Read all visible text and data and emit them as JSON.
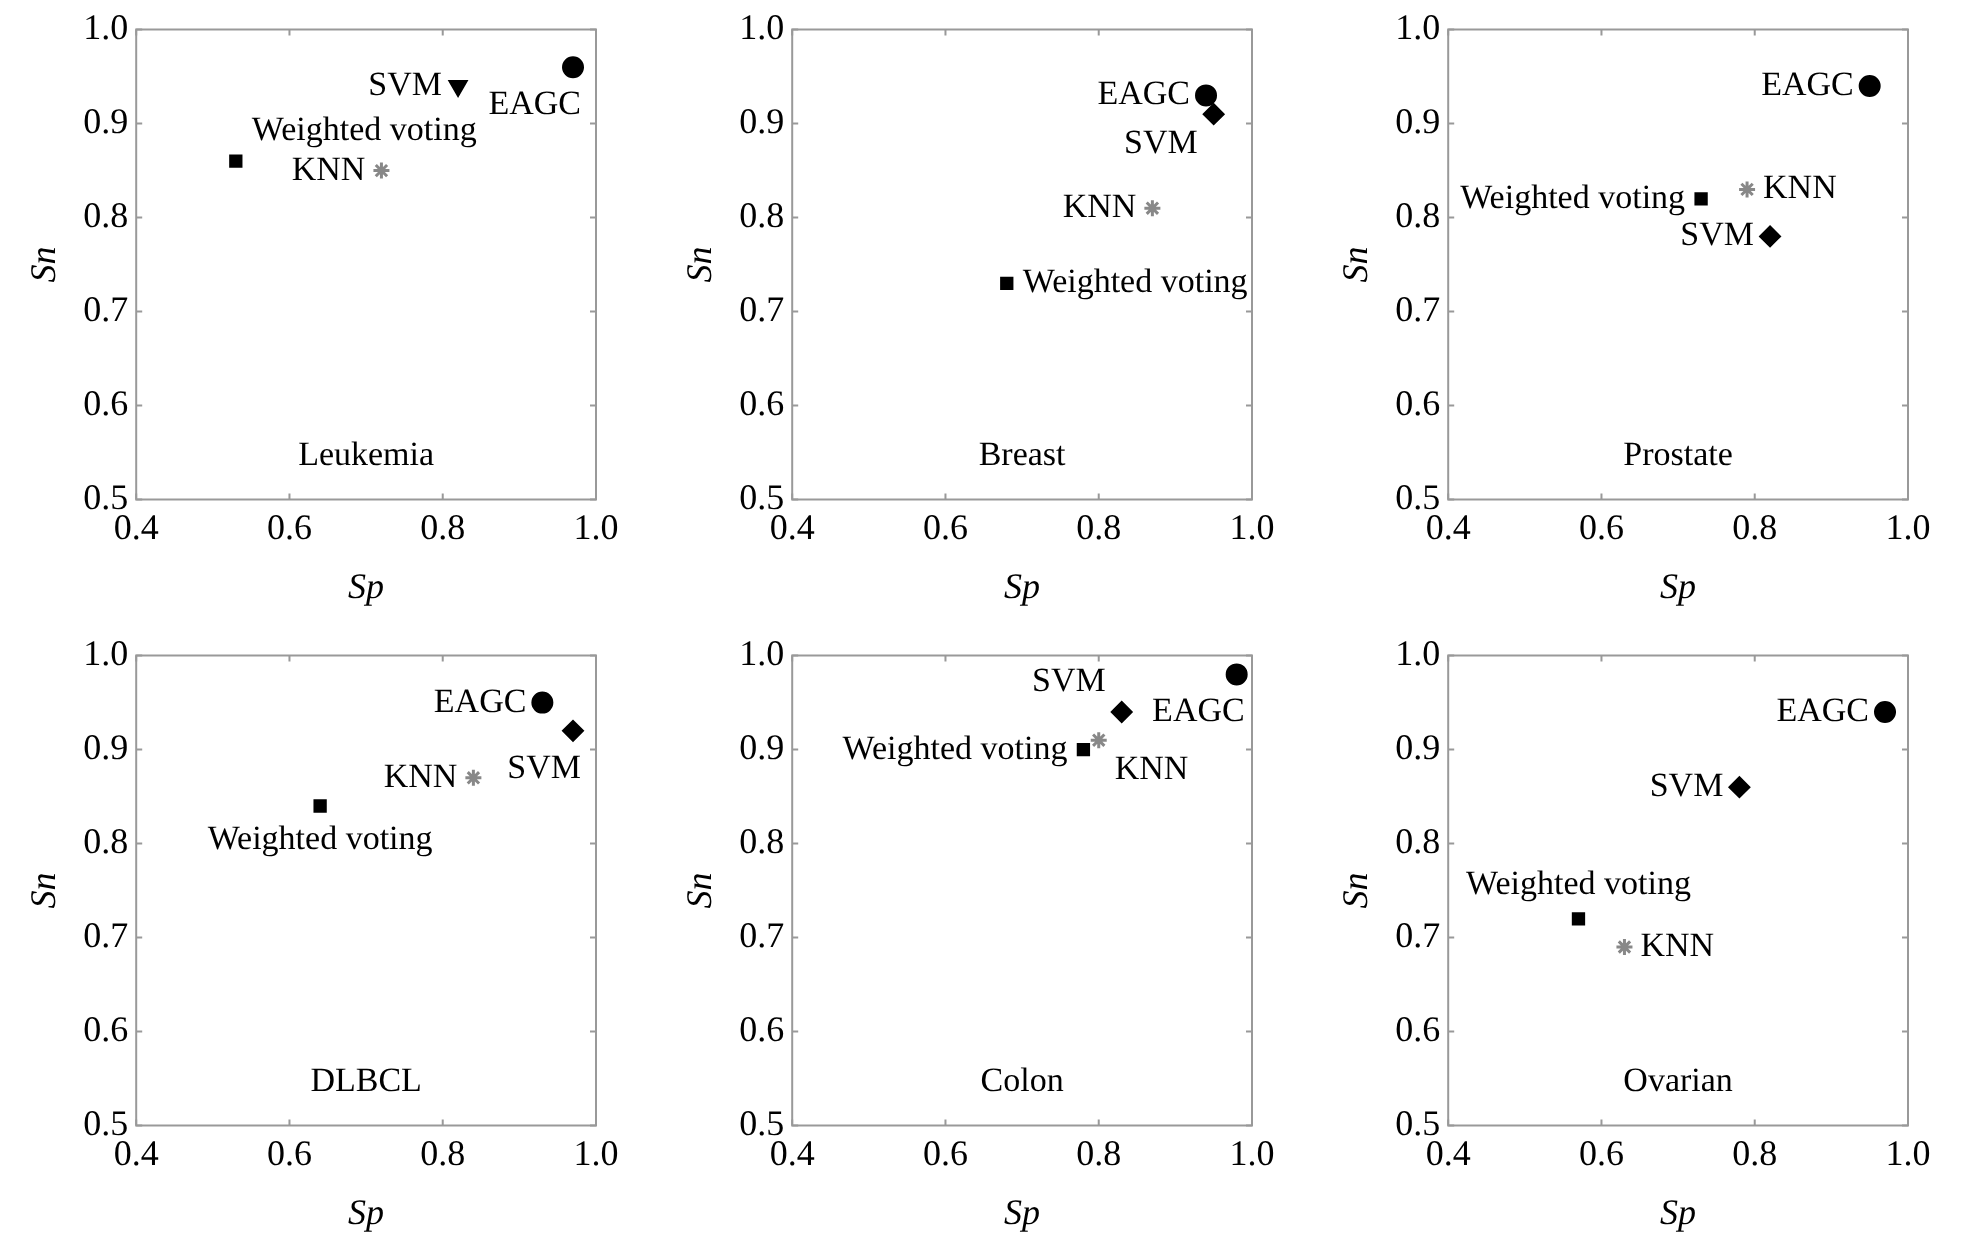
{
  "chart_data": [
    {
      "type": "scatter",
      "title": "Leukemia",
      "xlabel": "Sp",
      "ylabel": "Sn",
      "xlim": [
        0.4,
        1.0
      ],
      "ylim": [
        0.5,
        1.0
      ],
      "xticks": [
        {
          "value": 0.4,
          "label": "0.4"
        },
        {
          "value": 0.6,
          "label": "0.6"
        },
        {
          "value": 0.8,
          "label": "0.8"
        },
        {
          "value": 1.0,
          "label": "1.0"
        }
      ],
      "yticks": [
        {
          "value": 0.5,
          "label": "0.5"
        },
        {
          "value": 0.6,
          "label": "0.6"
        },
        {
          "value": 0.7,
          "label": "0.7"
        },
        {
          "value": 0.8,
          "label": "0.8"
        },
        {
          "value": 0.9,
          "label": "0.9"
        },
        {
          "value": 1.0,
          "label": "1.0"
        }
      ],
      "grid": false,
      "legend": false,
      "series": [
        {
          "name": "EAGC",
          "color": "#000000",
          "marker": "circle",
          "x": [
            0.97
          ],
          "values": [
            0.96
          ]
        },
        {
          "name": "SVM",
          "color": "#000000",
          "marker": "triangle",
          "x": [
            0.82
          ],
          "values": [
            0.94
          ]
        },
        {
          "name": "KNN",
          "color": "#888888",
          "marker": "cross",
          "x": [
            0.72
          ],
          "values": [
            0.85
          ]
        },
        {
          "name": "Weighted voting",
          "color": "#000000",
          "marker": "square",
          "x": [
            0.53
          ],
          "values": [
            0.86
          ]
        }
      ]
    },
    {
      "type": "scatter",
      "title": "Breast",
      "xlabel": "Sp",
      "ylabel": "Sn",
      "xlim": [
        0.4,
        1.0
      ],
      "ylim": [
        0.5,
        1.0
      ],
      "xticks": [
        {
          "value": 0.4,
          "label": "0.4"
        },
        {
          "value": 0.6,
          "label": "0.6"
        },
        {
          "value": 0.8,
          "label": "0.8"
        },
        {
          "value": 1.0,
          "label": "1.0"
        }
      ],
      "yticks": [
        {
          "value": 0.5,
          "label": "0.5"
        },
        {
          "value": 0.6,
          "label": "0.6"
        },
        {
          "value": 0.7,
          "label": "0.7"
        },
        {
          "value": 0.8,
          "label": "0.8"
        },
        {
          "value": 0.9,
          "label": "0.9"
        },
        {
          "value": 1.0,
          "label": "1.0"
        }
      ],
      "grid": false,
      "legend": false,
      "series": [
        {
          "name": "EAGC",
          "color": "#000000",
          "marker": "circle",
          "x": [
            0.94
          ],
          "values": [
            0.93
          ]
        },
        {
          "name": "SVM",
          "color": "#000000",
          "marker": "diamond",
          "x": [
            0.95
          ],
          "values": [
            0.91
          ]
        },
        {
          "name": "KNN",
          "color": "#888888",
          "marker": "cross",
          "x": [
            0.87
          ],
          "values": [
            0.81
          ]
        },
        {
          "name": "Weighted voting",
          "color": "#000000",
          "marker": "square",
          "x": [
            0.68
          ],
          "values": [
            0.73
          ]
        }
      ]
    },
    {
      "type": "scatter",
      "title": "Prostate",
      "xlabel": "Sp",
      "ylabel": "Sn",
      "xlim": [
        0.4,
        1.0
      ],
      "ylim": [
        0.5,
        1.0
      ],
      "xticks": [
        {
          "value": 0.4,
          "label": "0.4"
        },
        {
          "value": 0.6,
          "label": "0.6"
        },
        {
          "value": 0.8,
          "label": "0.8"
        },
        {
          "value": 1.0,
          "label": "1.0"
        }
      ],
      "yticks": [
        {
          "value": 0.5,
          "label": "0.5"
        },
        {
          "value": 0.6,
          "label": "0.6"
        },
        {
          "value": 0.7,
          "label": "0.7"
        },
        {
          "value": 0.8,
          "label": "0.8"
        },
        {
          "value": 0.9,
          "label": "0.9"
        },
        {
          "value": 1.0,
          "label": "1.0"
        }
      ],
      "grid": false,
      "legend": false,
      "series": [
        {
          "name": "EAGC",
          "color": "#000000",
          "marker": "circle",
          "x": [
            0.95
          ],
          "values": [
            0.94
          ]
        },
        {
          "name": "SVM",
          "color": "#000000",
          "marker": "diamond",
          "x": [
            0.82
          ],
          "values": [
            0.78
          ]
        },
        {
          "name": "KNN",
          "color": "#888888",
          "marker": "cross",
          "x": [
            0.79
          ],
          "values": [
            0.83
          ]
        },
        {
          "name": "Weighted voting",
          "color": "#000000",
          "marker": "square",
          "x": [
            0.73
          ],
          "values": [
            0.82
          ]
        }
      ]
    },
    {
      "type": "scatter",
      "title": "DLBCL",
      "xlabel": "Sp",
      "ylabel": "Sn",
      "xlim": [
        0.4,
        1.0
      ],
      "ylim": [
        0.5,
        1.0
      ],
      "xticks": [
        {
          "value": 0.4,
          "label": "0.4"
        },
        {
          "value": 0.6,
          "label": "0.6"
        },
        {
          "value": 0.8,
          "label": "0.8"
        },
        {
          "value": 1.0,
          "label": "1.0"
        }
      ],
      "yticks": [
        {
          "value": 0.5,
          "label": "0.5"
        },
        {
          "value": 0.6,
          "label": "0.6"
        },
        {
          "value": 0.7,
          "label": "0.7"
        },
        {
          "value": 0.8,
          "label": "0.8"
        },
        {
          "value": 0.9,
          "label": "0.9"
        },
        {
          "value": 1.0,
          "label": "1.0"
        }
      ],
      "grid": false,
      "legend": false,
      "series": [
        {
          "name": "EAGC",
          "color": "#000000",
          "marker": "circle",
          "x": [
            0.93
          ],
          "values": [
            0.95
          ]
        },
        {
          "name": "SVM",
          "color": "#000000",
          "marker": "diamond",
          "x": [
            0.97
          ],
          "values": [
            0.92
          ]
        },
        {
          "name": "KNN",
          "color": "#888888",
          "marker": "cross",
          "x": [
            0.84
          ],
          "values": [
            0.87
          ]
        },
        {
          "name": "Weighted voting",
          "color": "#000000",
          "marker": "square",
          "x": [
            0.64
          ],
          "values": [
            0.84
          ]
        }
      ]
    },
    {
      "type": "scatter",
      "title": "Colon",
      "xlabel": "Sp",
      "ylabel": "Sn",
      "xlim": [
        0.4,
        1.0
      ],
      "ylim": [
        0.5,
        1.0
      ],
      "xticks": [
        {
          "value": 0.4,
          "label": "0.4"
        },
        {
          "value": 0.6,
          "label": "0.6"
        },
        {
          "value": 0.8,
          "label": "0.8"
        },
        {
          "value": 1.0,
          "label": "1.0"
        }
      ],
      "yticks": [
        {
          "value": 0.5,
          "label": "0.5"
        },
        {
          "value": 0.6,
          "label": "0.6"
        },
        {
          "value": 0.7,
          "label": "0.7"
        },
        {
          "value": 0.8,
          "label": "0.8"
        },
        {
          "value": 0.9,
          "label": "0.9"
        },
        {
          "value": 1.0,
          "label": "1.0"
        }
      ],
      "grid": false,
      "legend": false,
      "series": [
        {
          "name": "EAGC",
          "color": "#000000",
          "marker": "circle",
          "x": [
            0.98
          ],
          "values": [
            0.98
          ]
        },
        {
          "name": "SVM",
          "color": "#000000",
          "marker": "diamond",
          "x": [
            0.83
          ],
          "values": [
            0.94
          ]
        },
        {
          "name": "KNN",
          "color": "#888888",
          "marker": "cross",
          "x": [
            0.8
          ],
          "values": [
            0.91
          ]
        },
        {
          "name": "Weighted voting",
          "color": "#000000",
          "marker": "square",
          "x": [
            0.78
          ],
          "values": [
            0.9
          ]
        }
      ]
    },
    {
      "type": "scatter",
      "title": "Ovarian",
      "xlabel": "Sp",
      "ylabel": "Sn",
      "xlim": [
        0.4,
        1.0
      ],
      "ylim": [
        0.5,
        1.0
      ],
      "xticks": [
        {
          "value": 0.4,
          "label": "0.4"
        },
        {
          "value": 0.6,
          "label": "0.6"
        },
        {
          "value": 0.8,
          "label": "0.8"
        },
        {
          "value": 1.0,
          "label": "1.0"
        }
      ],
      "yticks": [
        {
          "value": 0.5,
          "label": "0.5"
        },
        {
          "value": 0.6,
          "label": "0.6"
        },
        {
          "value": 0.7,
          "label": "0.7"
        },
        {
          "value": 0.8,
          "label": "0.8"
        },
        {
          "value": 0.9,
          "label": "0.9"
        },
        {
          "value": 1.0,
          "label": "1.0"
        }
      ],
      "grid": false,
      "legend": false,
      "series": [
        {
          "name": "EAGC",
          "color": "#000000",
          "marker": "circle",
          "x": [
            0.97
          ],
          "values": [
            0.94
          ]
        },
        {
          "name": "SVM",
          "color": "#000000",
          "marker": "diamond",
          "x": [
            0.78
          ],
          "values": [
            0.86
          ]
        },
        {
          "name": "KNN",
          "color": "#888888",
          "marker": "cross",
          "x": [
            0.63
          ],
          "values": [
            0.69
          ]
        },
        {
          "name": "Weighted voting",
          "color": "#000000",
          "marker": "square",
          "x": [
            0.57
          ],
          "values": [
            0.72
          ]
        }
      ]
    }
  ]
}
